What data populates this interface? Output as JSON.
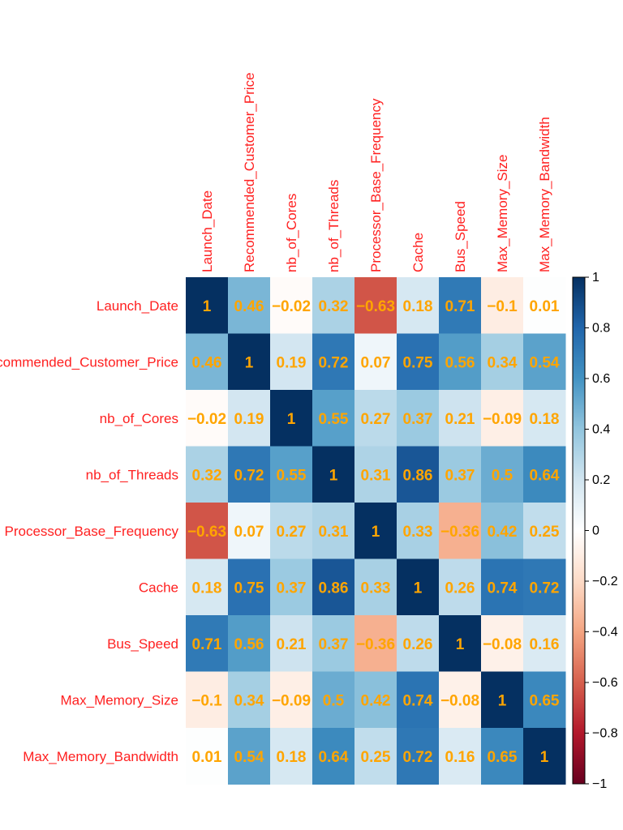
{
  "chart_data": {
    "type": "heatmap",
    "title": "",
    "row_labels": [
      "Launch_Date",
      "Recommended_Customer_Price",
      "nb_of_Cores",
      "nb_of_Threads",
      "Processor_Base_Frequency",
      "Cache",
      "Bus_Speed",
      "Max_Memory_Size",
      "Max_Memory_Bandwidth"
    ],
    "col_labels": [
      "Launch_Date",
      "Recommended_Customer_Price",
      "nb_of_Cores",
      "nb_of_Threads",
      "Processor_Base_Frequency",
      "Cache",
      "Bus_Speed",
      "Max_Memory_Size",
      "Max_Memory_Bandwidth"
    ],
    "values": [
      [
        1,
        0.46,
        -0.02,
        0.32,
        -0.63,
        0.18,
        0.71,
        -0.1,
        0.01
      ],
      [
        0.46,
        1,
        0.19,
        0.72,
        0.07,
        0.75,
        0.56,
        0.34,
        0.54
      ],
      [
        -0.02,
        0.19,
        1,
        0.55,
        0.27,
        0.37,
        0.21,
        -0.09,
        0.18
      ],
      [
        0.32,
        0.72,
        0.55,
        1,
        0.31,
        0.86,
        0.37,
        0.5,
        0.64
      ],
      [
        -0.63,
        0.07,
        0.27,
        0.31,
        1,
        0.33,
        -0.36,
        0.42,
        0.25
      ],
      [
        0.18,
        0.75,
        0.37,
        0.86,
        0.33,
        1,
        0.26,
        0.74,
        0.72
      ],
      [
        0.71,
        0.56,
        0.21,
        0.37,
        -0.36,
        0.26,
        1,
        -0.08,
        0.16
      ],
      [
        -0.1,
        0.34,
        -0.09,
        0.5,
        0.42,
        0.74,
        -0.08,
        1,
        0.65
      ],
      [
        0.01,
        0.54,
        0.18,
        0.64,
        0.25,
        0.72,
        0.16,
        0.65,
        1
      ]
    ],
    "value_labels": [
      [
        "1",
        "0.46",
        "−0.02",
        "0.32",
        "−0.63",
        "0.18",
        "0.71",
        "−0.1",
        "0.01"
      ],
      [
        "0.46",
        "1",
        "0.19",
        "0.72",
        "0.07",
        "0.75",
        "0.56",
        "0.34",
        "0.54"
      ],
      [
        "−0.02",
        "0.19",
        "1",
        "0.55",
        "0.27",
        "0.37",
        "0.21",
        "−0.09",
        "0.18"
      ],
      [
        "0.32",
        "0.72",
        "0.55",
        "1",
        "0.31",
        "0.86",
        "0.37",
        "0.5",
        "0.64"
      ],
      [
        "−0.63",
        "0.07",
        "0.27",
        "0.31",
        "1",
        "0.33",
        "−0.36",
        "0.42",
        "0.25"
      ],
      [
        "0.18",
        "0.75",
        "0.37",
        "0.86",
        "0.33",
        "1",
        "0.26",
        "0.74",
        "0.72"
      ],
      [
        "0.71",
        "0.56",
        "0.21",
        "0.37",
        "−0.36",
        "0.26",
        "1",
        "−0.08",
        "0.16"
      ],
      [
        "−0.1",
        "0.34",
        "−0.09",
        "0.5",
        "0.42",
        "0.74",
        "−0.08",
        "1",
        "0.65"
      ],
      [
        "0.01",
        "0.54",
        "0.18",
        "0.64",
        "0.25",
        "0.72",
        "0.16",
        "0.65",
        "1"
      ]
    ],
    "colorbar": {
      "range": [
        -1,
        1
      ],
      "ticks": [
        1,
        0.8,
        0.6,
        0.4,
        0.2,
        0,
        -0.2,
        -0.4,
        -0.6,
        -0.8,
        -1
      ],
      "tick_labels": [
        "1",
        "0.8",
        "0.6",
        "0.4",
        "0.2",
        "0",
        "−0.2",
        "−0.4",
        "−0.6",
        "−0.8",
        "−1"
      ]
    },
    "label_color": "#ff2020",
    "value_color": "#ffa500",
    "palette": [
      "#67001f",
      "#b2182b",
      "#d6604d",
      "#f4a582",
      "#fddbc7",
      "#ffffff",
      "#d1e5f0",
      "#92c5de",
      "#4393c3",
      "#2166ac",
      "#053061"
    ]
  }
}
